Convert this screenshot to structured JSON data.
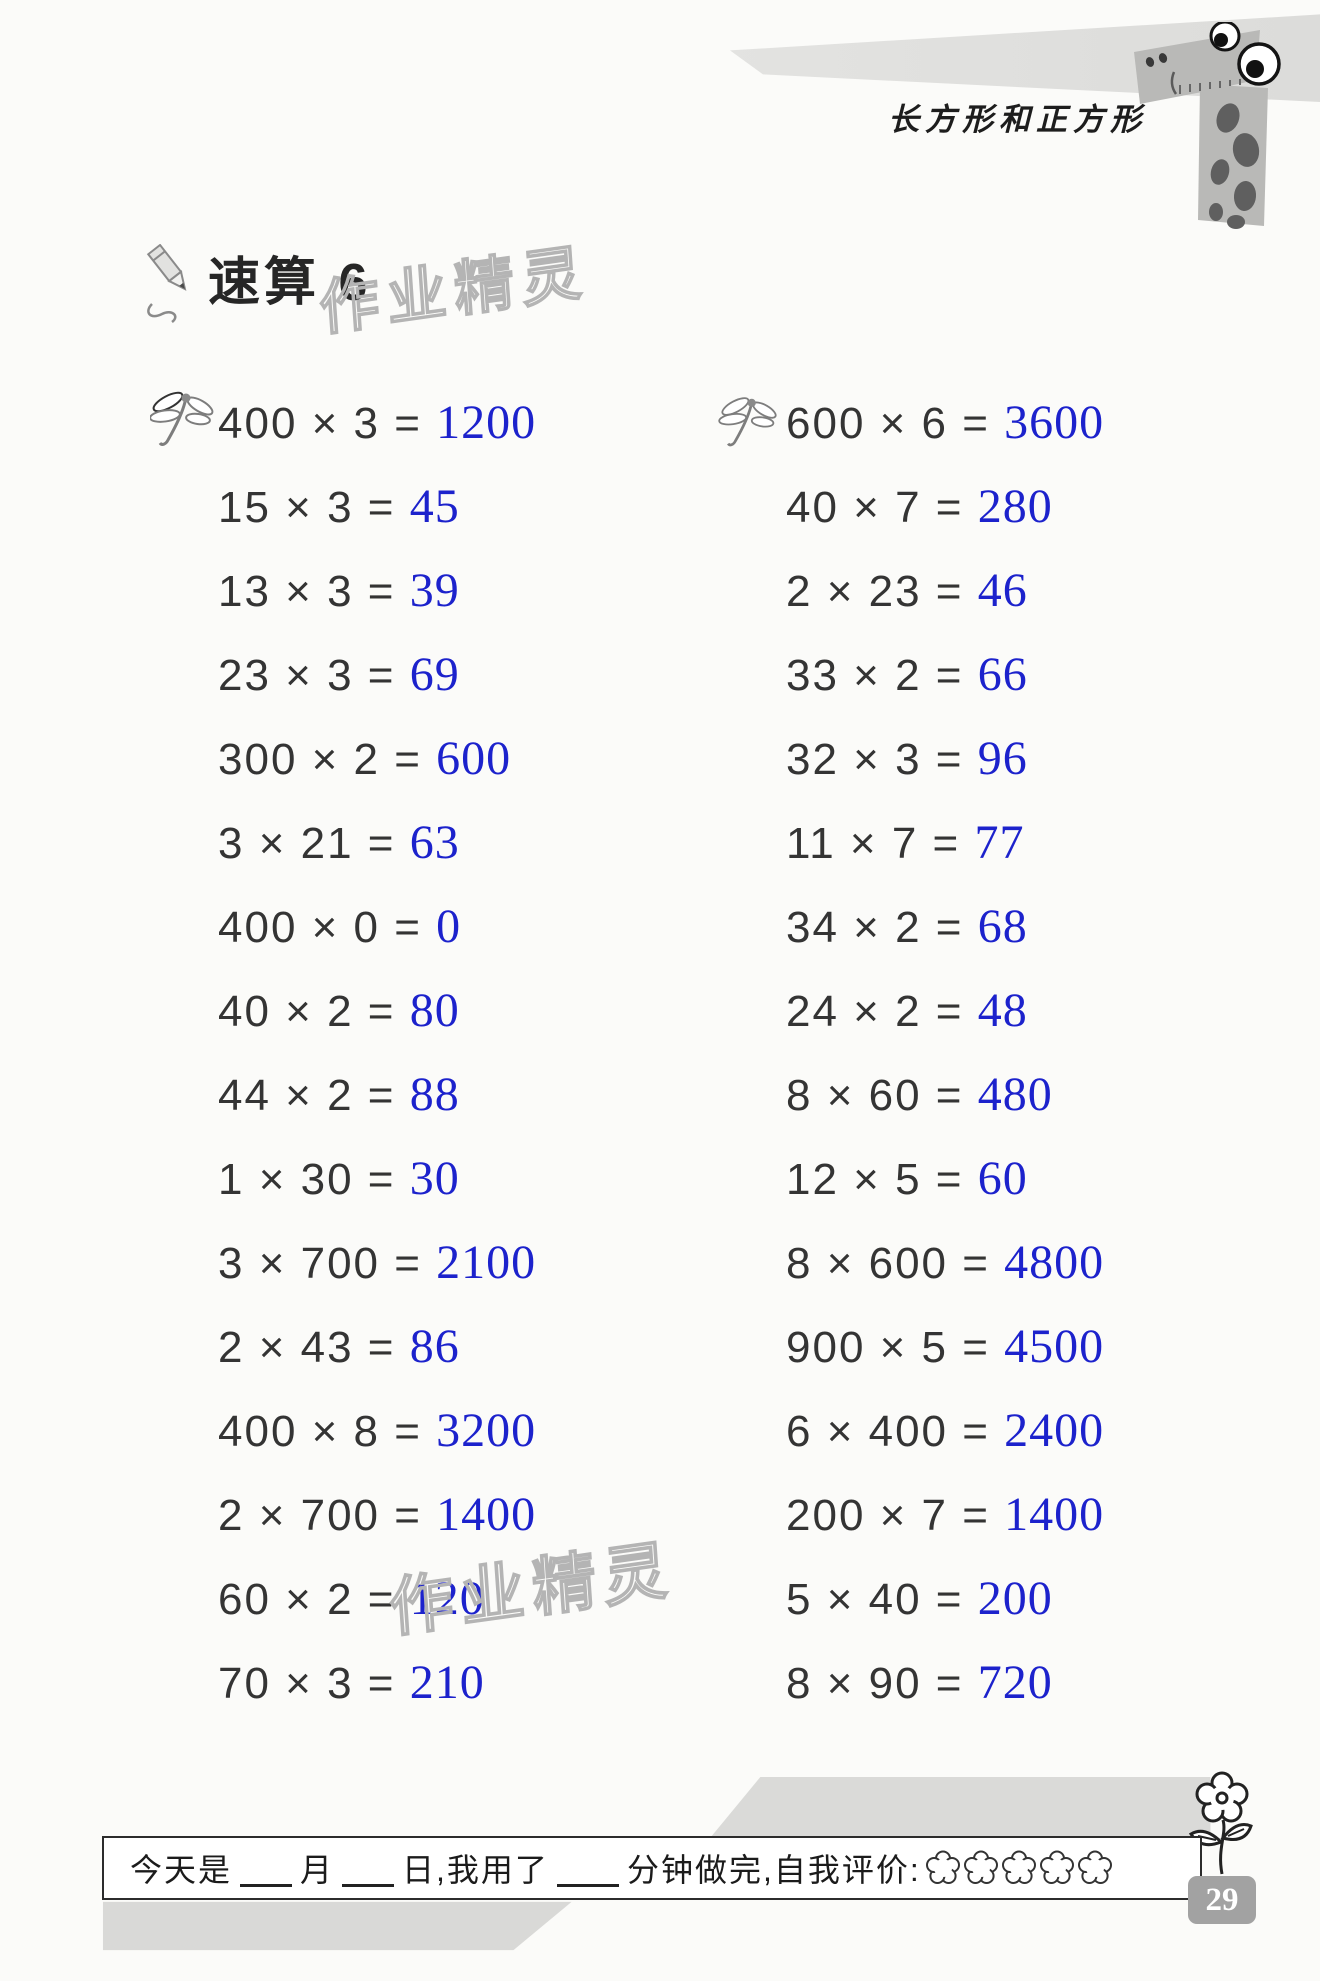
{
  "colors": {
    "answer_blue": "#1c22cc",
    "problem_dark": "#343434",
    "top_band_gray": "#e5e5e3",
    "footer_band_gray": "#d9d9d7",
    "badge_gray": "#a2a2a2"
  },
  "header": {
    "unit_title": "长方形和正方形"
  },
  "worksheet": {
    "title": "速算 6",
    "watermark": "作业精灵",
    "multiply_sign": "×",
    "equals_sign": "=",
    "columns": {
      "left": [
        {
          "a": "400",
          "b": "3",
          "ans": "1200"
        },
        {
          "a": "15",
          "b": "3",
          "ans": "45"
        },
        {
          "a": "13",
          "b": "3",
          "ans": "39"
        },
        {
          "a": "23",
          "b": "3",
          "ans": "69"
        },
        {
          "a": "300",
          "b": "2",
          "ans": "600"
        },
        {
          "a": "3",
          "b": "21",
          "ans": "63"
        },
        {
          "a": "400",
          "b": "0",
          "ans": "0"
        },
        {
          "a": "40",
          "b": "2",
          "ans": "80"
        },
        {
          "a": "44",
          "b": "2",
          "ans": "88"
        },
        {
          "a": "1",
          "b": "30",
          "ans": "30"
        },
        {
          "a": "3",
          "b": "700",
          "ans": "2100"
        },
        {
          "a": "2",
          "b": "43",
          "ans": "86"
        },
        {
          "a": "400",
          "b": "8",
          "ans": "3200"
        },
        {
          "a": "2",
          "b": "700",
          "ans": "1400"
        },
        {
          "a": "60",
          "b": "2",
          "ans": "120"
        },
        {
          "a": "70",
          "b": "3",
          "ans": "210"
        }
      ],
      "right": [
        {
          "a": "600",
          "b": "6",
          "ans": "3600"
        },
        {
          "a": "40",
          "b": "7",
          "ans": "280"
        },
        {
          "a": "2",
          "b": "23",
          "ans": "46"
        },
        {
          "a": "33",
          "b": "2",
          "ans": "66"
        },
        {
          "a": "32",
          "b": "3",
          "ans": "96"
        },
        {
          "a": "11",
          "b": "7",
          "ans": "77"
        },
        {
          "a": "34",
          "b": "2",
          "ans": "68"
        },
        {
          "a": "24",
          "b": "2",
          "ans": "48"
        },
        {
          "a": "8",
          "b": "60",
          "ans": "480"
        },
        {
          "a": "12",
          "b": "5",
          "ans": "60"
        },
        {
          "a": "8",
          "b": "600",
          "ans": "4800"
        },
        {
          "a": "900",
          "b": "5",
          "ans": "4500"
        },
        {
          "a": "6",
          "b": "400",
          "ans": "2400"
        },
        {
          "a": "200",
          "b": "7",
          "ans": "1400"
        },
        {
          "a": "5",
          "b": "40",
          "ans": "200"
        },
        {
          "a": "8",
          "b": "90",
          "ans": "720"
        }
      ]
    }
  },
  "footer": {
    "part1": "今天是",
    "part2": "月",
    "part3": "日,我用了",
    "part4": "分钟做完,自我评价:",
    "rating_count": 5,
    "page_number": "29"
  }
}
